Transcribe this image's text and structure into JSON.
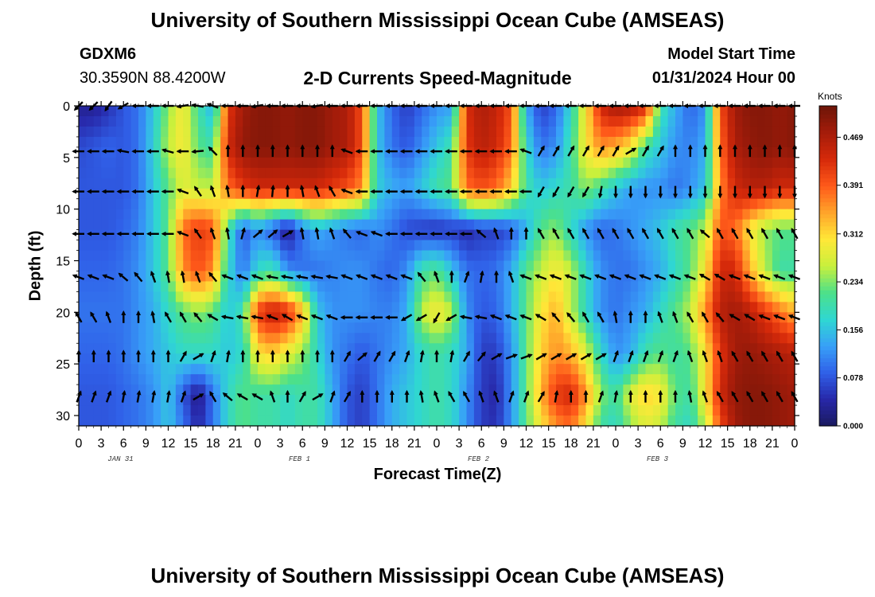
{
  "header": {
    "title": "University of Southern Mississippi Ocean Cube (AMSEAS)",
    "station": "GDXM6",
    "coords": "30.3590N  88.4200W",
    "subtitle": "2-D Currents Speed-Magnitude",
    "model_label": "Model Start Time",
    "model_time": "01/31/2024 Hour 00"
  },
  "footer": {
    "title": "University of Southern Mississippi Ocean Cube (AMSEAS)"
  },
  "chart_data": {
    "type": "heatmap",
    "title": "2-D Currents Speed-Magnitude",
    "xlabel": "Forecast Time(Z)",
    "ylabel": "Depth (ft)",
    "x_tick_labels": [
      "0",
      "3",
      "6",
      "9",
      "12",
      "15",
      "18",
      "21",
      "0",
      "3",
      "6",
      "9",
      "12",
      "15",
      "18",
      "21",
      "0",
      "3",
      "6",
      "9",
      "12",
      "15",
      "18",
      "21",
      "0",
      "3",
      "6",
      "9",
      "12",
      "15",
      "18",
      "21",
      "0"
    ],
    "x_range_hours": [
      0,
      96
    ],
    "date_labels": [
      {
        "hour": 4,
        "text": "JAN 31"
      },
      {
        "hour": 28,
        "text": "FEB 1"
      },
      {
        "hour": 52,
        "text": "FEB 2"
      },
      {
        "hour": 76,
        "text": "FEB 3"
      }
    ],
    "y_ticks": [
      0,
      5,
      10,
      15,
      20,
      25,
      30
    ],
    "ylim": [
      0,
      31
    ],
    "y_inverted": true,
    "colorbar": {
      "title": "Knots",
      "ticks": [
        0.0,
        0.078,
        0.156,
        0.234,
        0.312,
        0.391,
        0.469
      ],
      "tick_labels": [
        "0.000",
        "0.078",
        "0.156",
        "0.234",
        "0.312",
        "0.391",
        "0.469"
      ],
      "range": [
        0,
        0.52
      ],
      "colors": [
        "#1a1a5e",
        "#2727a8",
        "#3060e8",
        "#38a0f8",
        "#2fd7d2",
        "#4ce08a",
        "#c8f03c",
        "#ffe838",
        "#ffa52a",
        "#ff5a1a",
        "#d62a0a",
        "#a51c0a",
        "#6d1508"
      ]
    },
    "speed_depths_ft": [
      0,
      4,
      8,
      12,
      16,
      20,
      24,
      28,
      31
    ],
    "speed_hours": [
      0,
      2,
      4,
      6,
      8,
      10,
      12,
      14,
      16,
      18,
      20,
      22,
      24,
      26,
      28,
      30,
      32,
      34,
      36,
      38,
      40,
      42,
      44,
      46,
      48,
      50,
      52,
      54,
      56,
      58,
      60,
      62,
      64,
      66,
      68,
      70,
      72,
      74,
      76,
      78,
      80,
      82,
      84,
      86,
      88,
      90,
      92,
      94,
      96
    ],
    "speed_knots": [
      [
        0.03,
        0.03,
        0.05,
        0.08,
        0.1,
        0.16,
        0.24,
        0.3,
        0.2,
        0.14,
        0.42,
        0.48,
        0.5,
        0.5,
        0.49,
        0.5,
        0.5,
        0.48,
        0.47,
        0.4,
        0.16,
        0.09,
        0.06,
        0.09,
        0.12,
        0.13,
        0.43,
        0.47,
        0.45,
        0.4,
        0.14,
        0.06,
        0.09,
        0.18,
        0.3,
        0.44,
        0.48,
        0.47,
        0.44,
        0.2,
        0.14,
        0.09,
        0.12,
        0.4,
        0.48,
        0.5,
        0.5,
        0.49,
        0.5
      ],
      [
        0.07,
        0.08,
        0.09,
        0.08,
        0.1,
        0.17,
        0.26,
        0.3,
        0.22,
        0.2,
        0.44,
        0.49,
        0.5,
        0.5,
        0.49,
        0.5,
        0.5,
        0.48,
        0.47,
        0.4,
        0.16,
        0.1,
        0.08,
        0.12,
        0.16,
        0.2,
        0.42,
        0.46,
        0.44,
        0.38,
        0.18,
        0.1,
        0.12,
        0.2,
        0.3,
        0.36,
        0.34,
        0.3,
        0.2,
        0.16,
        0.12,
        0.11,
        0.14,
        0.38,
        0.47,
        0.49,
        0.5,
        0.49,
        0.5
      ],
      [
        0.08,
        0.08,
        0.08,
        0.08,
        0.1,
        0.16,
        0.22,
        0.28,
        0.26,
        0.26,
        0.38,
        0.42,
        0.44,
        0.44,
        0.44,
        0.44,
        0.44,
        0.42,
        0.4,
        0.36,
        0.17,
        0.14,
        0.13,
        0.16,
        0.2,
        0.22,
        0.38,
        0.4,
        0.38,
        0.32,
        0.2,
        0.16,
        0.18,
        0.2,
        0.24,
        0.2,
        0.16,
        0.13,
        0.12,
        0.12,
        0.1,
        0.12,
        0.16,
        0.36,
        0.44,
        0.46,
        0.46,
        0.44,
        0.44
      ],
      [
        0.08,
        0.08,
        0.08,
        0.09,
        0.11,
        0.16,
        0.22,
        0.38,
        0.42,
        0.4,
        0.2,
        0.08,
        0.12,
        0.08,
        0.02,
        0.1,
        0.14,
        0.12,
        0.1,
        0.09,
        0.12,
        0.1,
        0.07,
        0.06,
        0.05,
        0.06,
        0.04,
        0.06,
        0.06,
        0.08,
        0.14,
        0.22,
        0.24,
        0.18,
        0.12,
        0.09,
        0.1,
        0.12,
        0.14,
        0.16,
        0.2,
        0.22,
        0.26,
        0.4,
        0.38,
        0.3,
        0.24,
        0.22,
        0.22
      ],
      [
        0.09,
        0.09,
        0.09,
        0.1,
        0.12,
        0.16,
        0.22,
        0.36,
        0.4,
        0.36,
        0.18,
        0.1,
        0.18,
        0.2,
        0.12,
        0.1,
        0.1,
        0.11,
        0.12,
        0.12,
        0.1,
        0.09,
        0.12,
        0.2,
        0.22,
        0.16,
        0.1,
        0.09,
        0.1,
        0.14,
        0.22,
        0.26,
        0.3,
        0.26,
        0.18,
        0.12,
        0.1,
        0.1,
        0.12,
        0.14,
        0.18,
        0.22,
        0.3,
        0.44,
        0.44,
        0.34,
        0.26,
        0.2,
        0.2
      ],
      [
        0.1,
        0.1,
        0.1,
        0.1,
        0.12,
        0.14,
        0.18,
        0.22,
        0.24,
        0.22,
        0.16,
        0.2,
        0.42,
        0.46,
        0.44,
        0.34,
        0.16,
        0.12,
        0.12,
        0.12,
        0.11,
        0.11,
        0.14,
        0.26,
        0.3,
        0.26,
        0.12,
        0.08,
        0.09,
        0.14,
        0.22,
        0.3,
        0.34,
        0.26,
        0.18,
        0.12,
        0.1,
        0.12,
        0.14,
        0.18,
        0.22,
        0.26,
        0.36,
        0.46,
        0.48,
        0.46,
        0.42,
        0.38,
        0.34
      ],
      [
        0.09,
        0.09,
        0.09,
        0.1,
        0.12,
        0.14,
        0.16,
        0.18,
        0.18,
        0.18,
        0.16,
        0.18,
        0.3,
        0.32,
        0.28,
        0.24,
        0.18,
        0.12,
        0.1,
        0.08,
        0.1,
        0.12,
        0.14,
        0.18,
        0.2,
        0.18,
        0.14,
        0.06,
        0.06,
        0.12,
        0.22,
        0.32,
        0.36,
        0.34,
        0.28,
        0.18,
        0.12,
        0.14,
        0.2,
        0.22,
        0.2,
        0.22,
        0.3,
        0.42,
        0.48,
        0.49,
        0.48,
        0.47,
        0.46
      ],
      [
        0.08,
        0.08,
        0.08,
        0.09,
        0.1,
        0.12,
        0.16,
        0.08,
        0.02,
        0.1,
        0.18,
        0.22,
        0.2,
        0.2,
        0.18,
        0.2,
        0.2,
        0.14,
        0.08,
        0.06,
        0.1,
        0.14,
        0.16,
        0.18,
        0.2,
        0.18,
        0.12,
        0.06,
        0.04,
        0.12,
        0.22,
        0.34,
        0.42,
        0.44,
        0.36,
        0.24,
        0.2,
        0.28,
        0.32,
        0.3,
        0.22,
        0.2,
        0.3,
        0.44,
        0.49,
        0.5,
        0.5,
        0.49,
        0.48
      ],
      [
        0.08,
        0.08,
        0.08,
        0.09,
        0.1,
        0.12,
        0.16,
        0.1,
        0.04,
        0.1,
        0.18,
        0.22,
        0.2,
        0.2,
        0.18,
        0.2,
        0.2,
        0.14,
        0.08,
        0.06,
        0.1,
        0.14,
        0.16,
        0.18,
        0.2,
        0.18,
        0.12,
        0.06,
        0.05,
        0.12,
        0.22,
        0.3,
        0.36,
        0.38,
        0.3,
        0.2,
        0.18,
        0.24,
        0.28,
        0.26,
        0.2,
        0.18,
        0.26,
        0.4,
        0.48,
        0.5,
        0.5,
        0.49,
        0.48
      ]
    ],
    "vector_depths_ft": [
      0,
      4.4,
      8.3,
      12.4,
      16.6,
      20.5,
      24.3,
      28.2
    ],
    "vector_hours": [
      0,
      2,
      4,
      6,
      8,
      10,
      12,
      14,
      16,
      18,
      20,
      22,
      24,
      26,
      28,
      30,
      32,
      34,
      36,
      38,
      40,
      42,
      44,
      46,
      48,
      50,
      52,
      54,
      56,
      58,
      60,
      62,
      64,
      66,
      68,
      70,
      72,
      74,
      76,
      78,
      80,
      82,
      84,
      86,
      88,
      90,
      92,
      94,
      96
    ],
    "vector_direction_deg": [
      [
        135,
        135,
        125,
        150,
        180,
        180,
        180,
        170,
        190,
        200,
        180,
        180,
        170,
        180,
        180,
        180,
        170,
        180,
        180,
        180,
        180,
        180,
        180,
        180,
        180,
        180,
        180,
        180,
        180,
        180,
        180,
        180,
        180,
        180,
        180,
        180,
        180,
        180,
        180,
        180,
        180,
        180,
        180,
        180,
        180,
        180,
        180,
        180,
        180
      ],
      [
        180,
        180,
        180,
        190,
        180,
        180,
        195,
        180,
        175,
        225,
        270,
        270,
        270,
        270,
        270,
        270,
        270,
        270,
        200,
        180,
        180,
        180,
        180,
        180,
        180,
        180,
        180,
        180,
        180,
        180,
        200,
        300,
        300,
        300,
        300,
        300,
        300,
        330,
        300,
        300,
        270,
        270,
        270,
        270,
        270,
        270,
        270,
        270,
        270
      ],
      [
        180,
        180,
        180,
        180,
        180,
        180,
        180,
        200,
        235,
        250,
        260,
        270,
        280,
        275,
        270,
        260,
        250,
        240,
        200,
        180,
        180,
        180,
        180,
        180,
        180,
        180,
        180,
        180,
        180,
        180,
        180,
        120,
        120,
        120,
        120,
        100,
        90,
        90,
        90,
        90,
        90,
        90,
        90,
        90,
        90,
        90,
        90,
        90,
        90
      ],
      [
        180,
        180,
        180,
        180,
        180,
        180,
        180,
        200,
        235,
        250,
        260,
        285,
        320,
        320,
        330,
        260,
        260,
        250,
        230,
        200,
        200,
        180,
        180,
        180,
        180,
        180,
        180,
        220,
        250,
        270,
        270,
        240,
        240,
        240,
        240,
        240,
        240,
        240,
        240,
        240,
        240,
        240,
        220,
        240,
        240,
        240,
        240,
        240,
        240
      ],
      [
        200,
        200,
        200,
        220,
        230,
        250,
        260,
        260,
        250,
        230,
        200,
        200,
        200,
        190,
        190,
        190,
        190,
        190,
        200,
        200,
        200,
        200,
        200,
        230,
        250,
        270,
        290,
        280,
        270,
        250,
        200,
        200,
        200,
        200,
        200,
        200,
        200,
        200,
        200,
        200,
        200,
        200,
        210,
        210,
        200,
        200,
        200,
        200,
        200
      ],
      [
        240,
        240,
        250,
        270,
        270,
        260,
        240,
        240,
        230,
        210,
        190,
        190,
        190,
        200,
        210,
        200,
        200,
        200,
        180,
        180,
        180,
        180,
        150,
        150,
        120,
        150,
        190,
        190,
        200,
        200,
        200,
        210,
        230,
        230,
        240,
        240,
        260,
        270,
        270,
        250,
        250,
        240,
        240,
        230,
        210,
        210,
        200,
        200,
        200
      ],
      [
        270,
        270,
        270,
        270,
        270,
        270,
        270,
        300,
        330,
        290,
        280,
        270,
        270,
        270,
        270,
        270,
        270,
        270,
        300,
        320,
        300,
        300,
        290,
        280,
        270,
        280,
        300,
        310,
        330,
        340,
        340,
        330,
        330,
        330,
        330,
        330,
        290,
        290,
        290,
        290,
        290,
        250,
        250,
        250,
        240,
        240,
        240,
        240,
        240
      ],
      [
        290,
        290,
        290,
        280,
        280,
        280,
        280,
        290,
        330,
        240,
        220,
        210,
        210,
        250,
        270,
        300,
        330,
        290,
        300,
        270,
        270,
        270,
        270,
        260,
        250,
        240,
        240,
        250,
        250,
        290,
        290,
        300,
        280,
        270,
        270,
        290,
        280,
        270,
        270,
        270,
        270,
        260,
        250,
        240,
        240,
        240,
        240,
        240,
        240
      ]
    ]
  }
}
